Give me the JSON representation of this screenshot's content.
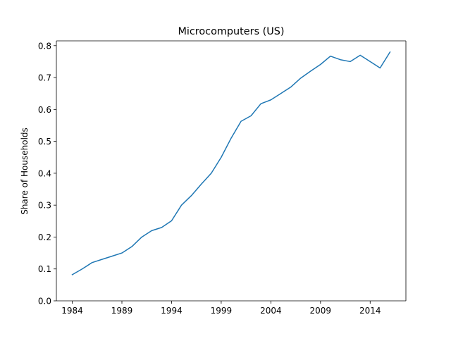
{
  "chart_data": {
    "type": "line",
    "title": "Microcomputers (US)",
    "xlabel": "",
    "ylabel": "Share of Households",
    "xlim": [
      1982.4,
      2017.6
    ],
    "ylim": [
      0.0,
      0.815
    ],
    "xticks": [
      1984,
      1989,
      1994,
      1999,
      2004,
      2009,
      2014
    ],
    "xtick_labels": [
      "1984",
      "1989",
      "1994",
      "1999",
      "2004",
      "2009",
      "2014"
    ],
    "yticks": [
      0.0,
      0.1,
      0.2,
      0.3,
      0.4,
      0.5,
      0.6,
      0.7,
      0.8
    ],
    "ytick_labels": [
      "0.0",
      "0.1",
      "0.2",
      "0.3",
      "0.4",
      "0.5",
      "0.6",
      "0.7",
      "0.8"
    ],
    "grid": false,
    "series": [
      {
        "color": "#1f77b4",
        "x": [
          1984,
          1985,
          1986,
          1987,
          1988,
          1989,
          1990,
          1991,
          1992,
          1993,
          1994,
          1995,
          1996,
          1997,
          1998,
          1999,
          2000,
          2001,
          2002,
          2003,
          2004,
          2005,
          2006,
          2007,
          2008,
          2009,
          2010,
          2011,
          2012,
          2013,
          2014,
          2015,
          2016
        ],
        "y": [
          0.082,
          0.1,
          0.12,
          0.13,
          0.14,
          0.15,
          0.17,
          0.2,
          0.22,
          0.23,
          0.251,
          0.3,
          0.33,
          0.366,
          0.4,
          0.45,
          0.51,
          0.563,
          0.58,
          0.618,
          0.63,
          0.65,
          0.67,
          0.698,
          0.72,
          0.741,
          0.767,
          0.756,
          0.75,
          0.77,
          0.75,
          0.73,
          0.78
        ]
      }
    ]
  }
}
